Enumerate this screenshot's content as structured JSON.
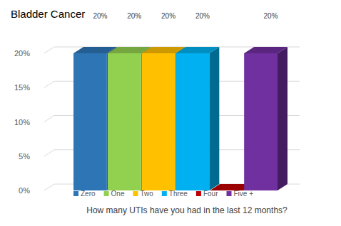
{
  "chart_data": {
    "type": "bar",
    "title": "Bladder Cancer",
    "x_label": "How many UTIs have you had in the last 12 months?",
    "categories": [
      "Zero",
      "One",
      "Two",
      "Three",
      "Four",
      "Five +"
    ],
    "values": [
      20,
      20,
      20,
      20,
      0,
      20
    ],
    "value_labels": [
      "20%",
      "20%",
      "20%",
      "20%",
      null,
      "20%"
    ],
    "colors": [
      "#2e75b6",
      "#92d050",
      "#ffc000",
      "#00b0f0",
      "#c00000",
      "#7030a0"
    ],
    "ylim": [
      0,
      20
    ],
    "yticks": [
      {
        "value": 0,
        "label": "0%"
      },
      {
        "value": 5,
        "label": "5%"
      },
      {
        "value": 10,
        "label": "10%"
      },
      {
        "value": 15,
        "label": "15%"
      },
      {
        "value": 20,
        "label": "20%"
      }
    ],
    "grid": true,
    "data_labels": true,
    "legend": "bottom",
    "tick_labels": "y"
  }
}
